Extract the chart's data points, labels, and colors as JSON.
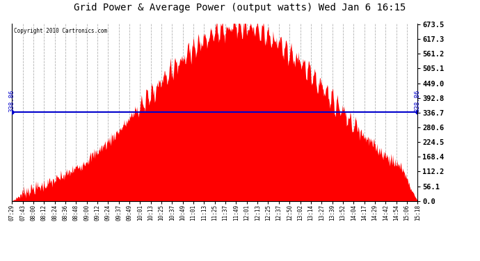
{
  "title": "Grid Power & Average Power (output watts) Wed Jan 6 16:15",
  "copyright": "Copyright 2010 Cartronics.com",
  "avg_value": 338.86,
  "avg_label": "338.86",
  "ymax": 673.5,
  "ymin": 0.0,
  "yticks": [
    0.0,
    56.1,
    112.2,
    168.4,
    224.5,
    280.6,
    336.7,
    392.8,
    449.0,
    505.1,
    561.2,
    617.3,
    673.5
  ],
  "background_color": "#ffffff",
  "fill_color": "#ff0000",
  "line_color": "#0000cc",
  "grid_color": "#aaaaaa",
  "title_fontsize": 10,
  "xtick_labels": [
    "07:29",
    "07:43",
    "08:00",
    "08:12",
    "08:24",
    "08:36",
    "08:48",
    "09:00",
    "09:12",
    "09:24",
    "09:37",
    "09:49",
    "10:01",
    "10:13",
    "10:25",
    "10:37",
    "10:49",
    "11:01",
    "11:13",
    "11:25",
    "11:37",
    "11:49",
    "12:01",
    "12:13",
    "12:25",
    "12:37",
    "12:50",
    "13:02",
    "13:14",
    "13:27",
    "13:39",
    "13:52",
    "14:04",
    "14:17",
    "14:29",
    "14:42",
    "14:54",
    "15:06",
    "15:18"
  ]
}
